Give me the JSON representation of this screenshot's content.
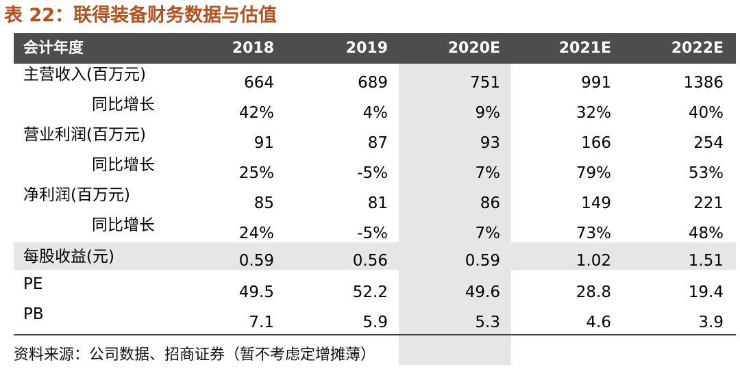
{
  "title": "表 22：联得装备财务数据与估值",
  "header": {
    "label": "会计年度",
    "years": [
      "2018",
      "2019",
      "2020E",
      "2021E",
      "2022E"
    ]
  },
  "rows": [
    {
      "label": "主营收入(百万元)",
      "values": [
        "664",
        "689",
        "751",
        "991",
        "1386"
      ]
    },
    {
      "label": "同比增长",
      "values": [
        "42%",
        "4%",
        "9%",
        "32%",
        "40%"
      ]
    },
    {
      "label": "营业利润(百万元)",
      "values": [
        "91",
        "87",
        "93",
        "166",
        "254"
      ]
    },
    {
      "label": "同比增长",
      "values": [
        "25%",
        "-5%",
        "7%",
        "79%",
        "53%"
      ]
    },
    {
      "label": "净利润(百万元)",
      "values": [
        "85",
        "81",
        "86",
        "149",
        "221"
      ]
    },
    {
      "label": "同比增长",
      "values": [
        "24%",
        "-5%",
        "7%",
        "73%",
        "48%"
      ]
    },
    {
      "label": "每股收益(元)",
      "values": [
        "0.59",
        "0.56",
        "0.59",
        "1.02",
        "1.51"
      ]
    },
    {
      "label": "PE",
      "values": [
        "49.5",
        "52.2",
        "49.6",
        "28.8",
        "19.4"
      ]
    },
    {
      "label": "PB",
      "values": [
        "7.1",
        "5.9",
        "5.3",
        "4.6",
        "3.9"
      ]
    }
  ],
  "source": "资料来源：公司数据、招商证券（暂不考虑定增摊薄）"
}
